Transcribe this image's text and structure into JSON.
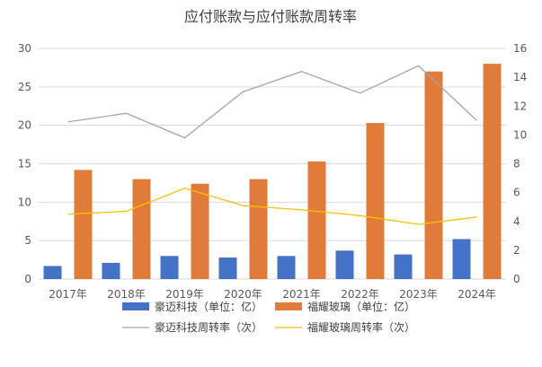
{
  "chart_data": {
    "type": "bar+line",
    "title": "应付账款与应付账款周转率",
    "categories": [
      "2017年",
      "2018年",
      "2019年",
      "2020年",
      "2021年",
      "2022年",
      "2023年",
      "2024年"
    ],
    "left_axis": {
      "min": 0,
      "max": 30,
      "step": 5,
      "ticks": [
        "0",
        "5",
        "10",
        "15",
        "20",
        "25",
        "30"
      ]
    },
    "right_axis": {
      "min": 0,
      "max": 16,
      "step": 2,
      "ticks": [
        "0",
        "2",
        "4",
        "6",
        "8",
        "10",
        "12",
        "14",
        "16"
      ]
    },
    "bar_series": [
      {
        "name": "豪迈科技（单位：亿）",
        "color": "#4472c4",
        "axis": "left",
        "values": [
          1.7,
          2.1,
          3.0,
          2.8,
          3.0,
          3.7,
          3.2,
          5.2
        ]
      },
      {
        "name": "福耀玻璃（单位：亿）",
        "color": "#e07b39",
        "axis": "left",
        "values": [
          14.2,
          13.0,
          12.4,
          13.0,
          15.3,
          20.3,
          27.0,
          28.0
        ]
      }
    ],
    "line_series": [
      {
        "name": "豪迈科技周转率（次）",
        "color": "#a5a5a5",
        "axis": "right",
        "values": [
          10.9,
          11.5,
          9.8,
          13.0,
          14.4,
          12.9,
          14.8,
          11.0
        ]
      },
      {
        "name": "福耀玻璃周转率（次）",
        "color": "#ffc000",
        "axis": "right",
        "values": [
          4.5,
          4.7,
          6.3,
          5.1,
          4.8,
          4.4,
          3.8,
          4.3
        ]
      }
    ],
    "legend_position": "bottom",
    "grid": true
  }
}
